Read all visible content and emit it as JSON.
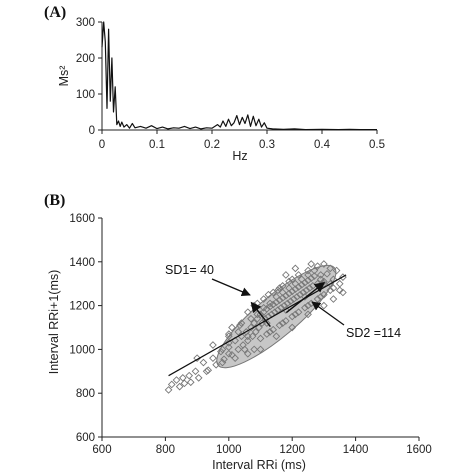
{
  "panels": {
    "a_label": "(A)",
    "b_label": "(B)"
  },
  "chart_data": [
    {
      "type": "line",
      "title": "",
      "xlabel": "Hz",
      "ylabel": "Ms²",
      "xlim": [
        0,
        0.5
      ],
      "ylim": [
        0,
        300
      ],
      "xticks": [
        "0",
        "0.1",
        "0.2",
        "0.3",
        "0.4",
        "0.5"
      ],
      "yticks": [
        "0",
        "100",
        "200",
        "300"
      ],
      "grid": false,
      "series": [
        {
          "x": [
            0,
            0.003,
            0.006,
            0.009,
            0.012,
            0.015,
            0.018,
            0.021,
            0.024,
            0.027,
            0.03,
            0.033,
            0.036,
            0.04,
            0.045,
            0.05,
            0.055,
            0.06,
            0.07,
            0.08,
            0.09,
            0.1,
            0.11,
            0.12,
            0.13,
            0.14,
            0.15,
            0.16,
            0.17,
            0.18,
            0.19,
            0.2,
            0.21,
            0.215,
            0.22,
            0.225,
            0.23,
            0.235,
            0.24,
            0.245,
            0.25,
            0.255,
            0.26,
            0.265,
            0.27,
            0.275,
            0.28,
            0.285,
            0.29,
            0.295,
            0.3,
            0.31,
            0.33,
            0.35,
            0.37,
            0.4,
            0.43,
            0.45,
            0.47,
            0.5
          ],
          "values": [
            230,
            300,
            245,
            60,
            280,
            80,
            200,
            50,
            120,
            15,
            25,
            10,
            22,
            8,
            15,
            5,
            18,
            6,
            10,
            5,
            12,
            4,
            8,
            3,
            6,
            5,
            10,
            4,
            8,
            3,
            6,
            5,
            15,
            8,
            25,
            10,
            30,
            12,
            20,
            40,
            15,
            35,
            18,
            42,
            10,
            38,
            12,
            30,
            8,
            20,
            5,
            3,
            2,
            3,
            1,
            2,
            1,
            2,
            1,
            1
          ]
        }
      ]
    },
    {
      "type": "scatter",
      "title": "",
      "xlabel": "Interval RRi (ms)",
      "ylabel": "Interval RRi+1(ms)",
      "xlim": [
        600,
        1600
      ],
      "ylim": [
        600,
        1600
      ],
      "xticks": [
        "600",
        "800",
        "1000",
        "1200",
        "1400",
        "1600"
      ],
      "yticks": [
        "600",
        "800",
        "1000",
        "1200",
        "1400",
        "1600"
      ],
      "grid": false,
      "annotations": [
        {
          "text": "SD1= 40"
        },
        {
          "text": "SD2 =114"
        }
      ],
      "sd1": 40,
      "sd2": 114,
      "center": [
        1150,
        1150
      ],
      "identity_line": [
        [
          810,
          880
        ],
        [
          1370,
          1340
        ]
      ],
      "points": [
        [
          810,
          815
        ],
        [
          820,
          840
        ],
        [
          835,
          860
        ],
        [
          845,
          830
        ],
        [
          855,
          870
        ],
        [
          860,
          845
        ],
        [
          875,
          880
        ],
        [
          880,
          850
        ],
        [
          895,
          900
        ],
        [
          905,
          870
        ],
        [
          920,
          940
        ],
        [
          935,
          905
        ],
        [
          950,
          960
        ],
        [
          960,
          930
        ],
        [
          975,
          990
        ],
        [
          985,
          955
        ],
        [
          1000,
          1010
        ],
        [
          1010,
          975
        ],
        [
          1020,
          1040
        ],
        [
          1030,
          1000
        ],
        [
          1040,
          1060
        ],
        [
          1045,
          1020
        ],
        [
          1055,
          1080
        ],
        [
          1060,
          1040
        ],
        [
          1070,
          1100
        ],
        [
          1075,
          1060
        ],
        [
          1080,
          1120
        ],
        [
          1085,
          1080
        ],
        [
          1090,
          1140
        ],
        [
          1095,
          1100
        ],
        [
          1100,
          1160
        ],
        [
          1105,
          1120
        ],
        [
          1110,
          1170
        ],
        [
          1115,
          1140
        ],
        [
          1120,
          1185
        ],
        [
          1125,
          1150
        ],
        [
          1130,
          1195
        ],
        [
          1135,
          1160
        ],
        [
          1140,
          1205
        ],
        [
          1145,
          1170
        ],
        [
          1150,
          1215
        ],
        [
          1155,
          1180
        ],
        [
          1160,
          1225
        ],
        [
          1165,
          1190
        ],
        [
          1170,
          1235
        ],
        [
          1175,
          1200
        ],
        [
          1180,
          1245
        ],
        [
          1185,
          1210
        ],
        [
          1190,
          1255
        ],
        [
          1195,
          1220
        ],
        [
          1200,
          1265
        ],
        [
          1205,
          1230
        ],
        [
          1210,
          1275
        ],
        [
          1215,
          1240
        ],
        [
          1220,
          1285
        ],
        [
          1225,
          1250
        ],
        [
          1230,
          1295
        ],
        [
          1235,
          1260
        ],
        [
          1240,
          1305
        ],
        [
          1245,
          1270
        ],
        [
          1250,
          1315
        ],
        [
          1255,
          1280
        ],
        [
          1260,
          1325
        ],
        [
          1265,
          1290
        ],
        [
          1270,
          1335
        ],
        [
          1280,
          1300
        ],
        [
          1290,
          1340
        ],
        [
          1300,
          1310
        ],
        [
          1310,
          1345
        ],
        [
          1320,
          1300
        ],
        [
          1330,
          1280
        ],
        [
          1350,
          1270
        ],
        [
          1360,
          1260
        ],
        [
          1040,
          1120
        ],
        [
          1060,
          980
        ],
        [
          1080,
          1000
        ],
        [
          1100,
          1050
        ],
        [
          1120,
          1070
        ],
        [
          1140,
          1090
        ],
        [
          1160,
          1110
        ],
        [
          1180,
          1130
        ],
        [
          1200,
          1150
        ],
        [
          1220,
          1170
        ],
        [
          1240,
          1190
        ],
        [
          1260,
          1210
        ],
        [
          1280,
          1230
        ],
        [
          1300,
          1250
        ],
        [
          1070,
          1140
        ],
        [
          1090,
          1160
        ],
        [
          1110,
          1190
        ],
        [
          1130,
          1210
        ],
        [
          1150,
          1240
        ],
        [
          1170,
          1260
        ],
        [
          1190,
          1280
        ],
        [
          1210,
          1300
        ],
        [
          1230,
          1320
        ],
        [
          1250,
          1340
        ],
        [
          1270,
          1360
        ],
        [
          1000,
          1060
        ],
        [
          1020,
          960
        ],
        [
          1050,
          1000
        ],
        [
          1100,
          1000
        ],
        [
          1150,
          1060
        ],
        [
          1200,
          1100
        ],
        [
          1250,
          1160
        ],
        [
          1300,
          1200
        ],
        [
          1330,
          1230
        ],
        [
          950,
          1020
        ],
        [
          980,
          940
        ],
        [
          1000,
          980
        ],
        [
          1030,
          1080
        ],
        [
          1160,
          1280
        ],
        [
          1190,
          1310
        ],
        [
          1220,
          1340
        ],
        [
          1250,
          1360
        ],
        [
          1280,
          1380
        ],
        [
          1300,
          1390
        ],
        [
          1320,
          1370
        ],
        [
          1340,
          1360
        ],
        [
          980,
          1000
        ],
        [
          1000,
          1030
        ],
        [
          1060,
          1060
        ],
        [
          1120,
          1120
        ],
        [
          1180,
          1180
        ],
        [
          1240,
          1240
        ],
        [
          1300,
          1300
        ],
        [
          1110,
          1230
        ],
        [
          1140,
          1260
        ],
        [
          1170,
          1290
        ],
        [
          1200,
          1320
        ],
        [
          1090,
          1210
        ],
        [
          1130,
          1080
        ],
        [
          1170,
          1120
        ],
        [
          1210,
          1160
        ],
        [
          1250,
          1200
        ],
        [
          1290,
          1240
        ],
        [
          1320,
          1270
        ],
        [
          1350,
          1300
        ],
        [
          1360,
          1330
        ],
        [
          900,
          960
        ],
        [
          930,
          900
        ],
        [
          1010,
          1100
        ],
        [
          1060,
          1170
        ],
        [
          1080,
          1200
        ],
        [
          1180,
          1340
        ],
        [
          1210,
          1370
        ],
        [
          1260,
          1390
        ],
        [
          1290,
          1320
        ],
        [
          1330,
          1320
        ],
        [
          1000,
          1070
        ],
        [
          1035,
          1110
        ],
        [
          1125,
          1250
        ],
        [
          1155,
          1270
        ]
      ]
    }
  ]
}
